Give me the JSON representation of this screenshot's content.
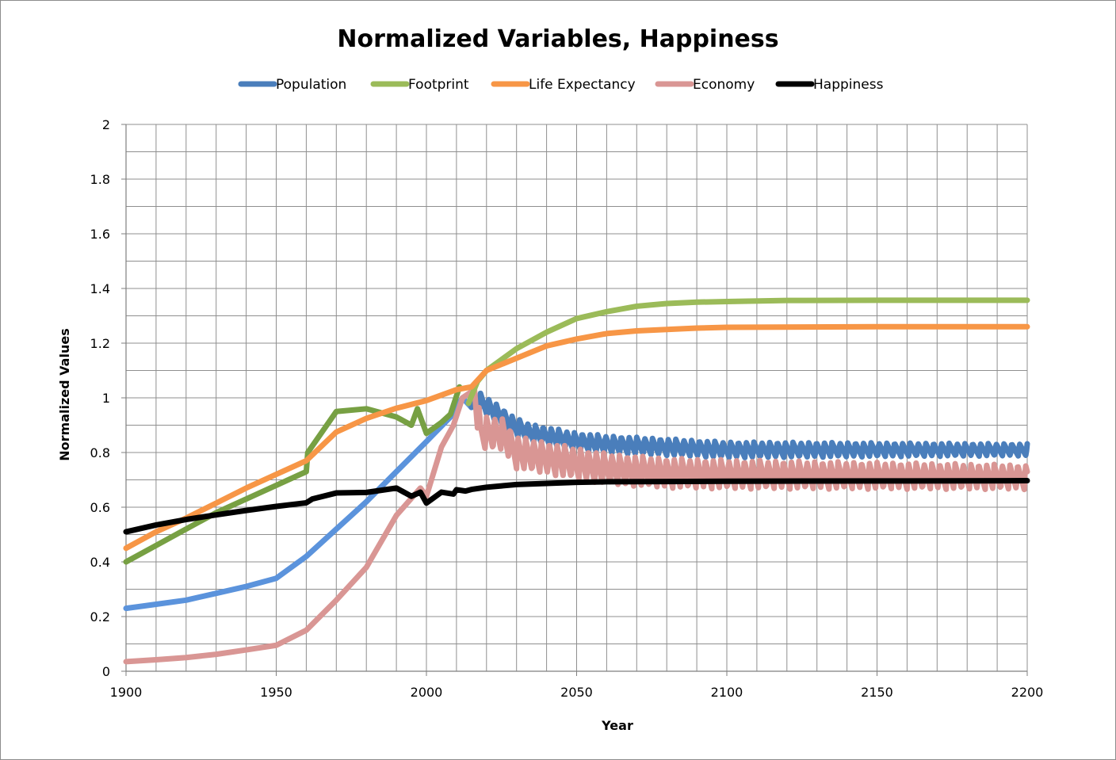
{
  "chart_data": {
    "type": "line",
    "title": "Normalized Variables, Happiness",
    "xlabel": "Year",
    "ylabel": "Normalized Values",
    "xlim": [
      1900,
      2200
    ],
    "ylim": [
      0,
      2
    ],
    "x_ticks": [
      "1900",
      "1950",
      "2000",
      "2050",
      "2100",
      "2150",
      "2200"
    ],
    "y_ticks": [
      "0",
      "0.2",
      "0.4",
      "0.6",
      "0.8",
      "1",
      "1.2",
      "1.4",
      "1.6",
      "1.8",
      "2"
    ],
    "x_minor_step": 10,
    "y_minor_step": 0.1,
    "grid": true,
    "legend_position": "top",
    "series": [
      {
        "name": "Population",
        "color": "#4a7ebb",
        "color_early": "#5b93dc",
        "color_split_x": 2015,
        "points": [
          [
            1900,
            0.23
          ],
          [
            1910,
            0.245
          ],
          [
            1920,
            0.26
          ],
          [
            1930,
            0.285
          ],
          [
            1940,
            0.31
          ],
          [
            1950,
            0.34
          ],
          [
            1960,
            0.42
          ],
          [
            1970,
            0.52
          ],
          [
            1980,
            0.62
          ],
          [
            1990,
            0.73
          ],
          [
            2000,
            0.84
          ],
          [
            2008,
            0.93
          ],
          [
            2012,
            1.0
          ],
          [
            2015,
            1.0
          ],
          [
            2020,
            0.97
          ],
          [
            2025,
            0.93
          ],
          [
            2030,
            0.89
          ],
          [
            2035,
            0.87
          ],
          [
            2040,
            0.86
          ],
          [
            2050,
            0.84
          ],
          [
            2060,
            0.83
          ],
          [
            2080,
            0.82
          ],
          [
            2100,
            0.81
          ],
          [
            2150,
            0.81
          ],
          [
            2200,
            0.81
          ]
        ],
        "oscillation": {
          "start": 2015,
          "period": 2.6,
          "amplitude": 0.035,
          "amplitude_end": 0.022
        }
      },
      {
        "name": "Footprint",
        "color": "#9bbb59",
        "color_early": "#77a043",
        "color_split_x": 2012,
        "points": [
          [
            1900,
            0.4
          ],
          [
            1910,
            0.46
          ],
          [
            1920,
            0.52
          ],
          [
            1930,
            0.58
          ],
          [
            1940,
            0.63
          ],
          [
            1950,
            0.68
          ],
          [
            1960,
            0.73
          ],
          [
            1960.5,
            0.8
          ],
          [
            1970,
            0.95
          ],
          [
            1980,
            0.96
          ],
          [
            1990,
            0.93
          ],
          [
            1995,
            0.9
          ],
          [
            1997,
            0.96
          ],
          [
            2000,
            0.87
          ],
          [
            2005,
            0.91
          ],
          [
            2008,
            0.94
          ],
          [
            2011,
            1.04
          ],
          [
            2014,
            0.98
          ],
          [
            2017,
            1.06
          ],
          [
            2020,
            1.1
          ],
          [
            2025,
            1.14
          ],
          [
            2030,
            1.18
          ],
          [
            2040,
            1.24
          ],
          [
            2050,
            1.29
          ],
          [
            2060,
            1.315
          ],
          [
            2070,
            1.335
          ],
          [
            2080,
            1.345
          ],
          [
            2090,
            1.35
          ],
          [
            2100,
            1.352
          ],
          [
            2120,
            1.356
          ],
          [
            2150,
            1.357
          ],
          [
            2200,
            1.357
          ]
        ]
      },
      {
        "name": "Life Expectancy",
        "color": "#f79646",
        "points": [
          [
            1900,
            0.45
          ],
          [
            1910,
            0.51
          ],
          [
            1920,
            0.56
          ],
          [
            1930,
            0.615
          ],
          [
            1940,
            0.67
          ],
          [
            1950,
            0.72
          ],
          [
            1960,
            0.77
          ],
          [
            1970,
            0.875
          ],
          [
            1980,
            0.925
          ],
          [
            1990,
            0.962
          ],
          [
            2000,
            0.99
          ],
          [
            2010,
            1.03
          ],
          [
            2015,
            1.04
          ],
          [
            2020,
            1.1
          ],
          [
            2030,
            1.145
          ],
          [
            2040,
            1.19
          ],
          [
            2050,
            1.215
          ],
          [
            2060,
            1.235
          ],
          [
            2070,
            1.245
          ],
          [
            2080,
            1.25
          ],
          [
            2090,
            1.255
          ],
          [
            2100,
            1.258
          ],
          [
            2150,
            1.26
          ],
          [
            2200,
            1.26
          ]
        ]
      },
      {
        "name": "Economy",
        "color": "#d99694",
        "points": [
          [
            1900,
            0.035
          ],
          [
            1910,
            0.042
          ],
          [
            1920,
            0.05
          ],
          [
            1930,
            0.062
          ],
          [
            1940,
            0.078
          ],
          [
            1950,
            0.095
          ],
          [
            1960,
            0.15
          ],
          [
            1970,
            0.26
          ],
          [
            1980,
            0.38
          ],
          [
            1990,
            0.57
          ],
          [
            1998,
            0.67
          ],
          [
            2000,
            0.64
          ],
          [
            2005,
            0.82
          ],
          [
            2009,
            0.9
          ],
          [
            2012,
            1.0
          ],
          [
            2016,
            1.03
          ],
          [
            2018,
            0.87
          ],
          [
            2025,
            0.87
          ],
          [
            2030,
            0.8
          ],
          [
            2040,
            0.78
          ],
          [
            2050,
            0.76
          ],
          [
            2060,
            0.74
          ],
          [
            2080,
            0.725
          ],
          [
            2100,
            0.72
          ],
          [
            2150,
            0.715
          ],
          [
            2200,
            0.71
          ]
        ],
        "oscillation": {
          "start": 2017,
          "period": 2.6,
          "amplitude": 0.06,
          "amplitude_end": 0.045
        }
      },
      {
        "name": "Happiness",
        "color": "#000000",
        "points": [
          [
            1900,
            0.51
          ],
          [
            1910,
            0.535
          ],
          [
            1920,
            0.555
          ],
          [
            1930,
            0.572
          ],
          [
            1940,
            0.588
          ],
          [
            1950,
            0.603
          ],
          [
            1960,
            0.616
          ],
          [
            1962,
            0.63
          ],
          [
            1970,
            0.652
          ],
          [
            1980,
            0.654
          ],
          [
            1990,
            0.67
          ],
          [
            1995,
            0.64
          ],
          [
            1998,
            0.655
          ],
          [
            2000,
            0.615
          ],
          [
            2005,
            0.655
          ],
          [
            2009,
            0.648
          ],
          [
            2010,
            0.664
          ],
          [
            2013,
            0.659
          ],
          [
            2015,
            0.665
          ],
          [
            2020,
            0.673
          ],
          [
            2025,
            0.678
          ],
          [
            2030,
            0.683
          ],
          [
            2040,
            0.687
          ],
          [
            2050,
            0.691
          ],
          [
            2060,
            0.693
          ],
          [
            2080,
            0.694
          ],
          [
            2100,
            0.695
          ],
          [
            2150,
            0.696
          ],
          [
            2200,
            0.697
          ]
        ]
      }
    ]
  }
}
